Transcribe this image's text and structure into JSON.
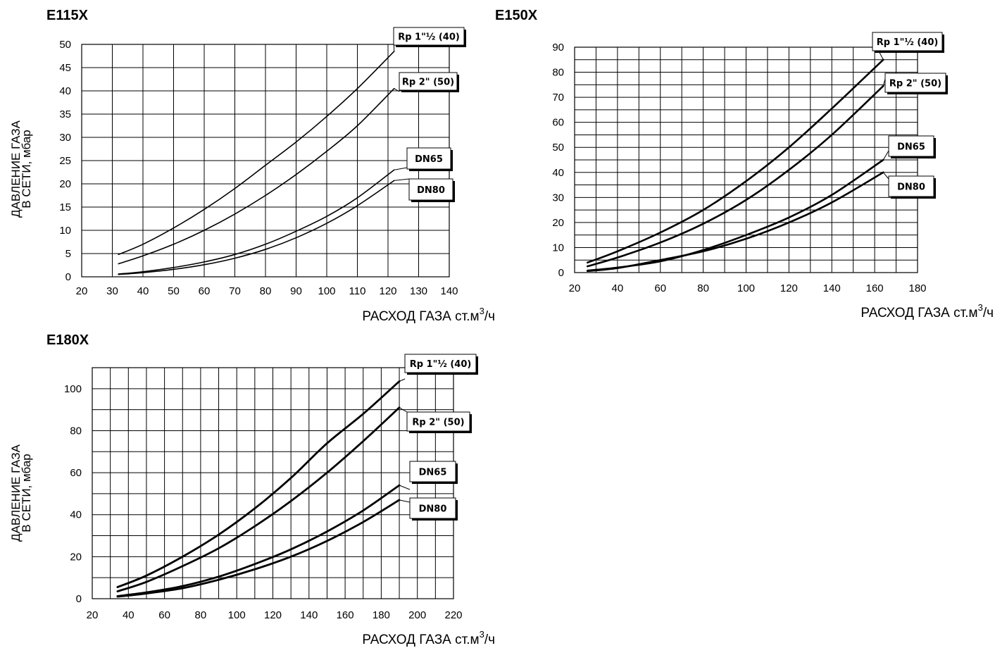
{
  "chart_data": [
    {
      "type": "line",
      "title": "E115X",
      "xlabel": "РАСХОД ГАЗА ст.м",
      "xlabel_sup": "3",
      "xlabel_suffix": "/ч",
      "ylabel_line1": "ДАВЛЕНИЕ ГАЗА",
      "ylabel_line2": "В СЕТИ, мбар",
      "xlim": [
        20,
        140
      ],
      "ylim": [
        0,
        50
      ],
      "x_ticks": [
        20,
        30,
        40,
        50,
        60,
        70,
        80,
        90,
        100,
        110,
        120,
        130,
        140
      ],
      "y_ticks": [
        0,
        5,
        10,
        15,
        20,
        25,
        30,
        35,
        40,
        45,
        50
      ],
      "x_grid_step": 10,
      "y_grid_step": 5,
      "grid": true,
      "legend": "right-of-lines",
      "series": [
        {
          "name": "Rp 1\"½ (40)",
          "x": [
            32,
            40,
            50,
            60,
            70,
            80,
            90,
            100,
            110,
            122
          ],
          "y": [
            4.8,
            7.0,
            10.5,
            14.5,
            19.0,
            24.0,
            29.0,
            34.5,
            40.5,
            48.5
          ]
        },
        {
          "name": "Rp 2\" (50)",
          "x": [
            32,
            40,
            50,
            60,
            70,
            80,
            90,
            100,
            110,
            122
          ],
          "y": [
            2.8,
            4.5,
            7.0,
            10.0,
            13.5,
            17.5,
            22.0,
            27.0,
            32.5,
            40.5
          ]
        },
        {
          "name": "DN65",
          "x": [
            32,
            40,
            50,
            60,
            70,
            80,
            90,
            100,
            110,
            122
          ],
          "y": [
            0.6,
            1.1,
            2.0,
            3.2,
            4.8,
            7.0,
            9.8,
            13.0,
            17.0,
            23.0
          ]
        },
        {
          "name": "DN80",
          "x": [
            32,
            40,
            50,
            60,
            70,
            80,
            90,
            100,
            110,
            122
          ],
          "y": [
            0.5,
            0.9,
            1.6,
            2.6,
            4.0,
            5.9,
            8.4,
            11.5,
            15.3,
            20.7
          ]
        }
      ]
    },
    {
      "type": "line",
      "title": "E150X",
      "xlabel": "РАСХОД ГАЗА ст.м",
      "xlabel_sup": "3",
      "xlabel_suffix": "/ч",
      "ylabel_line1": "",
      "ylabel_line2": "",
      "xlim": [
        20,
        180
      ],
      "ylim": [
        0,
        90
      ],
      "x_ticks": [
        20,
        40,
        60,
        80,
        100,
        120,
        140,
        160,
        180
      ],
      "y_ticks": [
        0,
        10,
        20,
        30,
        40,
        50,
        60,
        70,
        80,
        90
      ],
      "x_grid_step": 10,
      "y_grid_step": 5,
      "grid": true,
      "legend": "right-of-lines",
      "series": [
        {
          "name": "Rp 1\"½ (40)",
          "x": [
            26,
            40,
            60,
            80,
            100,
            120,
            140,
            164
          ],
          "y": [
            4.0,
            8.5,
            16.0,
            25.0,
            36.5,
            50.0,
            65.5,
            85.0
          ]
        },
        {
          "name": "Rp 2\" (50)",
          "x": [
            26,
            40,
            60,
            80,
            100,
            120,
            140,
            164
          ],
          "y": [
            2.5,
            6.0,
            12.0,
            19.5,
            29.0,
            41.0,
            55.0,
            74.5
          ]
        },
        {
          "name": "DN65",
          "x": [
            26,
            40,
            60,
            80,
            100,
            120,
            140,
            164
          ],
          "y": [
            0.8,
            2.0,
            4.5,
            9.0,
            15.0,
            22.0,
            31.0,
            45.0
          ]
        },
        {
          "name": "DN80",
          "x": [
            26,
            40,
            60,
            80,
            100,
            120,
            140,
            164
          ],
          "y": [
            0.6,
            1.8,
            5.0,
            8.5,
            13.5,
            20.0,
            28.0,
            40.0
          ]
        }
      ]
    },
    {
      "type": "line",
      "title": "E180X",
      "xlabel": "РАСХОД ГАЗА ст.м",
      "xlabel_sup": "3",
      "xlabel_suffix": "/ч",
      "ylabel_line1": "ДАВЛЕНИЕ ГАЗА",
      "ylabel_line2": "В СЕТИ, мбар",
      "xlim": [
        20,
        220
      ],
      "ylim": [
        0,
        110
      ],
      "x_ticks": [
        20,
        40,
        60,
        80,
        100,
        120,
        140,
        160,
        180,
        200,
        220
      ],
      "y_ticks": [
        0,
        20,
        40,
        60,
        80,
        100
      ],
      "x_grid_step": 10,
      "y_grid_step": 10,
      "grid": true,
      "legend": "right-of-lines",
      "series": [
        {
          "name": "Rp 1\"½ (40)",
          "x": [
            34,
            50,
            70,
            90,
            110,
            130,
            150,
            170,
            190
          ],
          "y": [
            5.5,
            11.0,
            20.0,
            30.5,
            43.0,
            57.5,
            74.0,
            88.0,
            103.5
          ]
        },
        {
          "name": "Rp 2\" (50)",
          "x": [
            34,
            50,
            70,
            90,
            110,
            130,
            150,
            170,
            190
          ],
          "y": [
            3.5,
            8.0,
            15.5,
            24.0,
            34.5,
            46.5,
            60.0,
            75.0,
            91.0
          ]
        },
        {
          "name": "DN65",
          "x": [
            34,
            50,
            70,
            90,
            110,
            130,
            150,
            170,
            190
          ],
          "y": [
            1.2,
            3.0,
            6.0,
            10.5,
            16.5,
            23.5,
            32.0,
            42.0,
            54.0
          ]
        },
        {
          "name": "DN80",
          "x": [
            34,
            50,
            70,
            90,
            110,
            130,
            150,
            170,
            190
          ],
          "y": [
            1.0,
            2.5,
            5.0,
            9.0,
            14.0,
            20.0,
            27.5,
            36.5,
            47.0
          ]
        }
      ]
    }
  ]
}
